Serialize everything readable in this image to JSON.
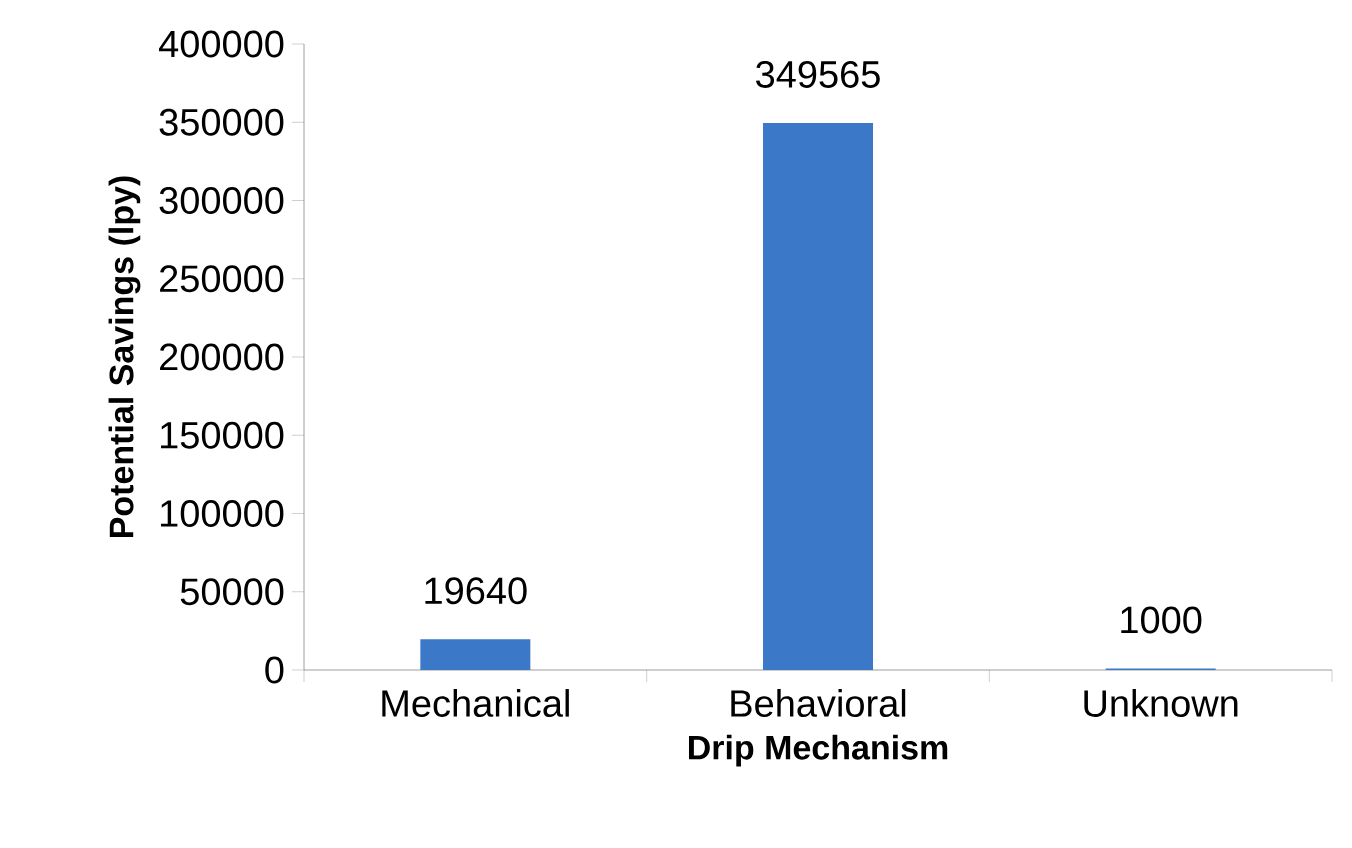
{
  "chart_data": {
    "type": "bar",
    "xlabel": "Drip Mechanism",
    "ylabel": "Potential Savings (lpy)",
    "categories": [
      "Mechanical",
      "Behavioral",
      "Unknown"
    ],
    "values": [
      19640,
      349565,
      1000
    ],
    "color": "#3b78c8",
    "ylim": [
      0,
      400000
    ],
    "yticks": [
      0,
      50000,
      100000,
      150000,
      200000,
      250000,
      300000,
      350000,
      400000
    ],
    "data_labels": true
  }
}
